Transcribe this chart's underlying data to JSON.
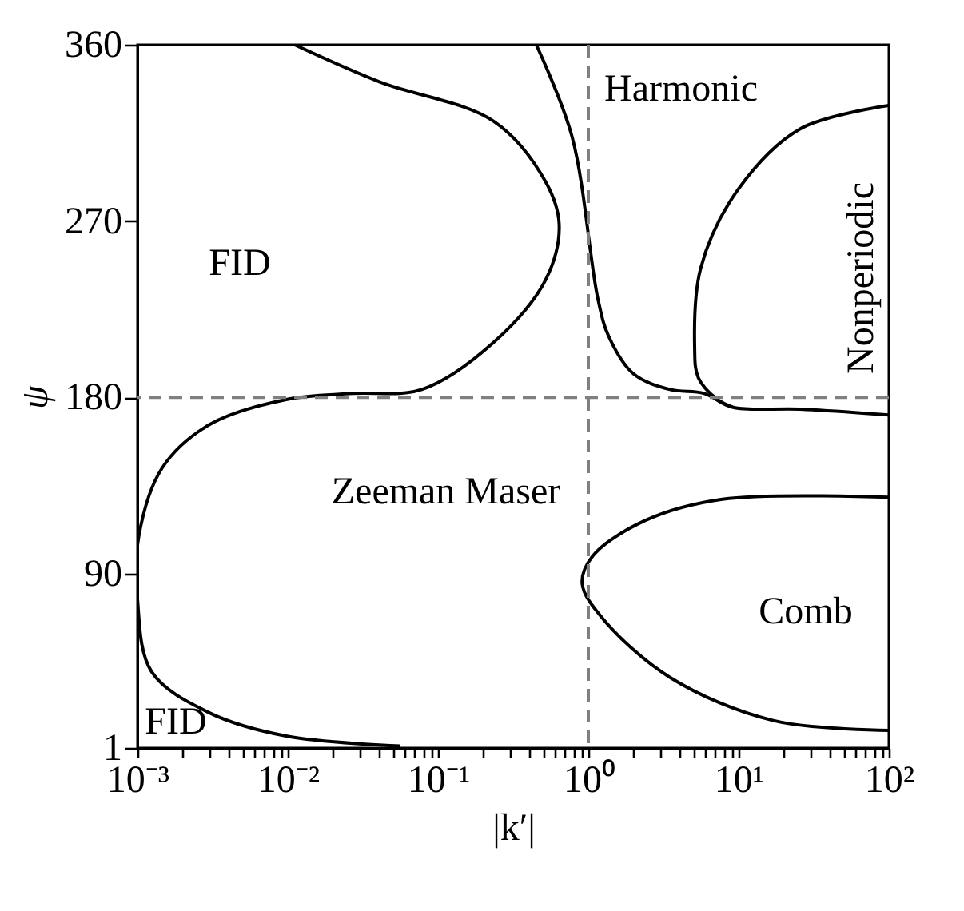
{
  "chart_data": {
    "type": "line",
    "xlabel": "|k′|",
    "ylabel": "ψ",
    "log": "x",
    "xlim": [
      0.001,
      100
    ],
    "ylim": [
      1,
      360
    ],
    "xticks": [
      {
        "value": 0.001,
        "label": "10⁻³"
      },
      {
        "value": 0.002,
        "label": null
      },
      {
        "value": 0.003,
        "label": null
      },
      {
        "value": 0.004,
        "label": null
      },
      {
        "value": 0.005,
        "label": null
      },
      {
        "value": 0.006,
        "label": null
      },
      {
        "value": 0.007,
        "label": null
      },
      {
        "value": 0.008,
        "label": null
      },
      {
        "value": 0.009,
        "label": null
      },
      {
        "value": 0.01,
        "label": "10⁻²"
      },
      {
        "value": 0.02,
        "label": null
      },
      {
        "value": 0.03,
        "label": null
      },
      {
        "value": 0.04,
        "label": null
      },
      {
        "value": 0.05,
        "label": null
      },
      {
        "value": 0.06,
        "label": null
      },
      {
        "value": 0.07,
        "label": null
      },
      {
        "value": 0.08,
        "label": null
      },
      {
        "value": 0.09,
        "label": null
      },
      {
        "value": 0.1,
        "label": "10⁻¹"
      },
      {
        "value": 0.2,
        "label": null
      },
      {
        "value": 0.3,
        "label": null
      },
      {
        "value": 0.4,
        "label": null
      },
      {
        "value": 0.5,
        "label": null
      },
      {
        "value": 0.6,
        "label": null
      },
      {
        "value": 0.7,
        "label": null
      },
      {
        "value": 0.8,
        "label": null
      },
      {
        "value": 0.9,
        "label": null
      },
      {
        "value": 1,
        "label": "10⁰"
      },
      {
        "value": 2,
        "label": null
      },
      {
        "value": 3,
        "label": null
      },
      {
        "value": 4,
        "label": null
      },
      {
        "value": 5,
        "label": null
      },
      {
        "value": 6,
        "label": null
      },
      {
        "value": 7,
        "label": null
      },
      {
        "value": 8,
        "label": null
      },
      {
        "value": 9,
        "label": null
      },
      {
        "value": 10,
        "label": "10¹"
      },
      {
        "value": 20,
        "label": null
      },
      {
        "value": 30,
        "label": null
      },
      {
        "value": 40,
        "label": null
      },
      {
        "value": 50,
        "label": null
      },
      {
        "value": 60,
        "label": null
      },
      {
        "value": 70,
        "label": null
      },
      {
        "value": 80,
        "label": null
      },
      {
        "value": 90,
        "label": null
      },
      {
        "value": 100,
        "label": "10²"
      }
    ],
    "yticks": [
      1,
      90,
      180,
      270,
      360
    ],
    "grid": false,
    "line_style": "solid",
    "marker": "none",
    "series": [
      {
        "color": "#000000",
        "x": [
          0.0111,
          0.041,
          0.234,
          0.52,
          0.64,
          0.52,
          0.234,
          0.078,
          0.027,
          0.0099,
          0.003,
          0.00146,
          0.00102,
          0.001,
          0.00124,
          0.003,
          0.0099,
          0.056
        ],
        "values": [
          360,
          341,
          321,
          290,
          268,
          240,
          208,
          184,
          182,
          179,
          166,
          144,
          109,
          77,
          40,
          19,
          7,
          2
        ]
      },
      {
        "color": "#000000",
        "x": [
          0.45,
          0.78,
          1.16,
          1.37,
          2.0,
          3.5,
          5.9,
          9.1,
          25.6,
          100
        ],
        "values": [
          360,
          313,
          230,
          211,
          192,
          184,
          182,
          175,
          174,
          171
        ]
      },
      {
        "color": "#000000",
        "x": [
          100,
          25.6,
          9.9,
          5.6,
          5.1,
          5.4,
          7.2,
          9.1
        ],
        "values": [
          329,
          317,
          286,
          246,
          206,
          190,
          179,
          175
        ]
      },
      {
        "color": "#000000",
        "x": [
          100,
          7.8,
          2.37,
          1.07,
          0.91,
          1.25,
          3.5,
          17,
          100
        ],
        "values": [
          129,
          128,
          117,
          99,
          85,
          67,
          37,
          15,
          10
        ]
      }
    ],
    "ref_lines": [
      {
        "axis": "x",
        "value": 1,
        "label": null,
        "color": "#808080",
        "line_style": "dashed"
      },
      {
        "axis": "y",
        "value": 180,
        "label": null,
        "color": "#808080",
        "line_style": "dashed"
      }
    ],
    "annotations": [
      "FID",
      "Harmonic",
      "Nonperiodic",
      "Zeeman Maser",
      "FID",
      "Comb"
    ]
  }
}
